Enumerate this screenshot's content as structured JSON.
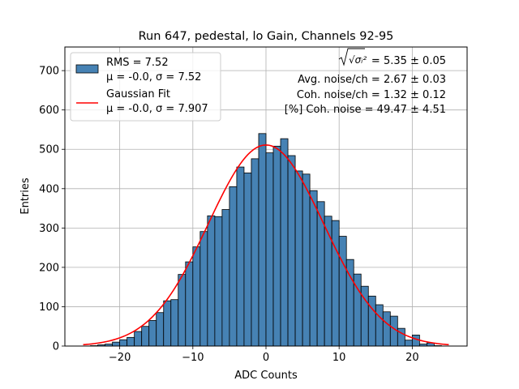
{
  "chart_data": {
    "type": "bar",
    "title": "Run 647, pedestal, lo Gain, Channels 92-95",
    "xlabel": "ADC Counts",
    "ylabel": "Entries",
    "xlim": [
      -27.5,
      27.5
    ],
    "ylim": [
      0,
      760
    ],
    "xticks": [
      -20,
      -10,
      0,
      10,
      20
    ],
    "yticks": [
      0,
      100,
      200,
      300,
      400,
      500,
      600,
      700
    ],
    "grid": true,
    "bar_color": "#4682b4",
    "fit_color": "#ff0000",
    "legend_placement": "top-left",
    "histogram": {
      "bin_edges": [
        -24,
        -23,
        -22,
        -21,
        -20,
        -19,
        -18,
        -17,
        -16,
        -15,
        -14,
        -13,
        -12,
        -11,
        -10,
        -9,
        -8,
        -7,
        -6,
        -5,
        -4,
        -3,
        -2,
        -1,
        0,
        1,
        2,
        3,
        4,
        5,
        6,
        7,
        8,
        9,
        10,
        11,
        12,
        13,
        14,
        15,
        16,
        17,
        18,
        19,
        20,
        21,
        22,
        23,
        24,
        25
      ],
      "counts": [
        1,
        3,
        5,
        10,
        16,
        22,
        37,
        50,
        65,
        85,
        115,
        118,
        182,
        214,
        252,
        291,
        331,
        329,
        347,
        405,
        455,
        440,
        476,
        540,
        491,
        508,
        527,
        484,
        445,
        437,
        395,
        367,
        330,
        319,
        279,
        220,
        183,
        152,
        127,
        105,
        87,
        76,
        45,
        15,
        28,
        5,
        8,
        1,
        0
      ]
    },
    "series": [
      {
        "name": "RMS = 7.52",
        "label2": "μ = -0.0, σ = 7.52",
        "kind": "histogram"
      },
      {
        "name": "Gaussian Fit",
        "label2": "μ = -0.0, σ = 7.907",
        "kind": "line",
        "mu": 0.0,
        "sigma": 7.907,
        "amplitude": 511,
        "x_range": [
          -25,
          25
        ]
      }
    ],
    "annotations": [
      {
        "prefix": "√σᵢ²",
        "text": " = 5.35 ± 0.05"
      },
      {
        "text": "Avg. noise/ch = 2.67 ± 0.03"
      },
      {
        "text": "Coh. noise/ch = 1.32 ± 0.12"
      },
      {
        "text": "[%] Coh. noise = 49.47 ± 4.51"
      }
    ]
  }
}
